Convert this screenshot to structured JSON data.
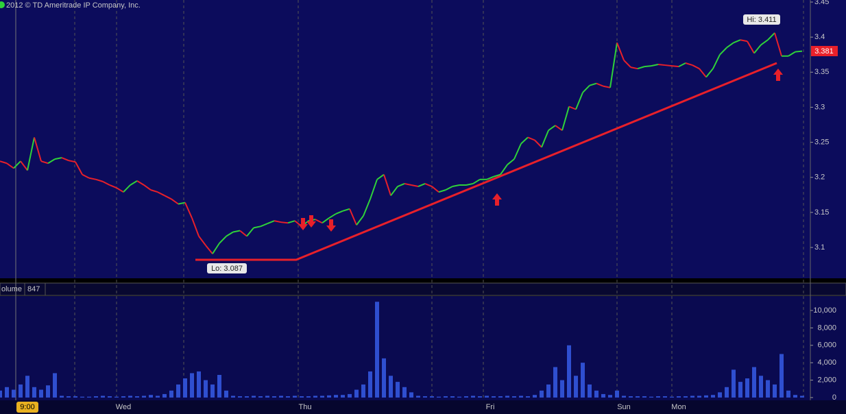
{
  "chart_data": [
    {
      "type": "line",
      "copyright": "2012 © TD Ameritrade IP Company, Inc.",
      "hi_label": "Hi: 3.411",
      "lo_label": "Lo: 3.087",
      "last_label": "3.381",
      "up_color": "#2fd23a",
      "down_color": "#e8202a",
      "x": [
        0,
        10,
        20,
        30,
        40,
        50,
        60,
        70,
        80,
        90,
        100,
        110,
        120,
        130,
        140,
        150,
        160,
        170,
        180,
        190,
        200,
        210,
        220,
        230,
        240,
        250,
        260,
        270,
        280,
        290,
        300,
        310,
        320,
        330,
        340,
        350,
        360,
        370,
        380,
        390,
        400,
        410,
        420,
        430,
        440,
        450,
        460,
        470,
        480,
        490,
        500,
        510,
        520,
        530,
        540,
        550,
        560,
        570,
        580,
        590,
        600,
        610,
        620,
        630,
        640,
        650,
        660,
        670,
        680,
        690,
        700,
        710,
        720,
        730,
        740,
        750,
        760,
        770,
        780,
        790,
        800,
        810,
        820,
        830,
        840,
        850,
        860,
        870,
        880,
        890,
        900,
        910,
        920,
        930,
        940,
        950,
        960,
        970,
        980,
        990,
        1000,
        1010,
        1020,
        1030,
        1040,
        1050,
        1060,
        1070,
        1080,
        1090,
        1100,
        1110,
        1120,
        1130,
        1140,
        1150,
        1160,
        1170
      ],
      "values": [
        3.223,
        3.22,
        3.213,
        3.223,
        3.21,
        3.257,
        3.223,
        3.22,
        3.226,
        3.228,
        3.224,
        3.222,
        3.204,
        3.199,
        3.197,
        3.194,
        3.189,
        3.185,
        3.179,
        3.189,
        3.195,
        3.189,
        3.182,
        3.179,
        3.174,
        3.169,
        3.162,
        3.164,
        3.142,
        3.116,
        3.103,
        3.091,
        3.106,
        3.116,
        3.122,
        3.124,
        3.116,
        3.128,
        3.13,
        3.134,
        3.138,
        3.136,
        3.135,
        3.138,
        3.13,
        3.138,
        3.14,
        3.135,
        3.142,
        3.148,
        3.152,
        3.155,
        3.132,
        3.145,
        3.169,
        3.197,
        3.204,
        3.174,
        3.187,
        3.191,
        3.189,
        3.187,
        3.191,
        3.187,
        3.179,
        3.182,
        3.187,
        3.189,
        3.189,
        3.191,
        3.197,
        3.197,
        3.201,
        3.204,
        3.218,
        3.226,
        3.248,
        3.257,
        3.253,
        3.243,
        3.267,
        3.274,
        3.267,
        3.301,
        3.297,
        3.321,
        3.331,
        3.334,
        3.33,
        3.328,
        3.392,
        3.367,
        3.357,
        3.355,
        3.358,
        3.359,
        3.361,
        3.36,
        3.359,
        3.358,
        3.363,
        3.36,
        3.355,
        3.343,
        3.355,
        3.375,
        3.385,
        3.392,
        3.396,
        3.394,
        3.377,
        3.389,
        3.396,
        3.406,
        3.373,
        3.373,
        3.379,
        3.38
      ],
      "xlim": [
        0,
        1182
      ],
      "ylim": [
        3.057,
        3.45
      ],
      "yticks": [
        3.1,
        3.15,
        3.2,
        3.25,
        3.3,
        3.35,
        3.4,
        3.45
      ],
      "xticks": [
        {
          "value": 23,
          "label": "9:00"
        },
        {
          "value": 170,
          "label": "Wed"
        },
        {
          "value": 435,
          "label": "Thu"
        },
        {
          "value": 705,
          "label": "Fri"
        },
        {
          "value": 900,
          "label": "Sun"
        },
        {
          "value": 980,
          "label": "Mon"
        }
      ],
      "xgrid": [
        109,
        268,
        630,
        1172
      ]
    },
    {
      "type": "bar",
      "title": "olume",
      "last_value": "847",
      "color": "#2f4fd0",
      "values": [
        800,
        1200,
        900,
        1500,
        2500,
        1200,
        900,
        1400,
        2800,
        200,
        150,
        150,
        100,
        100,
        150,
        200,
        150,
        100,
        150,
        200,
        150,
        200,
        300,
        200,
        400,
        800,
        1500,
        2200,
        2800,
        3000,
        2000,
        1500,
        2600,
        800,
        200,
        150,
        150,
        200,
        150,
        200,
        150,
        200,
        150,
        200,
        150,
        150,
        200,
        200,
        250,
        300,
        300,
        400,
        900,
        1500,
        3000,
        11000,
        4500,
        2500,
        1800,
        1200,
        600,
        200,
        150,
        150,
        100,
        150,
        150,
        100,
        150,
        200,
        150,
        200,
        150,
        150,
        200,
        150,
        200,
        150,
        300,
        800,
        1500,
        3500,
        2000,
        6000,
        2500,
        4000,
        1500,
        800,
        400,
        300,
        800,
        200,
        150,
        150,
        150,
        100,
        150,
        150,
        100,
        150,
        150,
        200,
        200,
        250,
        300,
        600,
        1200,
        3200,
        1800,
        2200,
        3500,
        2500,
        2000,
        1500,
        5000,
        800,
        300,
        200
      ],
      "ylim": [
        0,
        11650
      ],
      "yticks": [
        0,
        {
          "value": 2000,
          "label": "2,000"
        },
        {
          "value": 4000,
          "label": "4,000"
        },
        {
          "value": 6000,
          "label": "6,000"
        },
        {
          "value": 8000,
          "label": "8,000"
        },
        {
          "value": 10000,
          "label": "10,000"
        }
      ]
    }
  ]
}
